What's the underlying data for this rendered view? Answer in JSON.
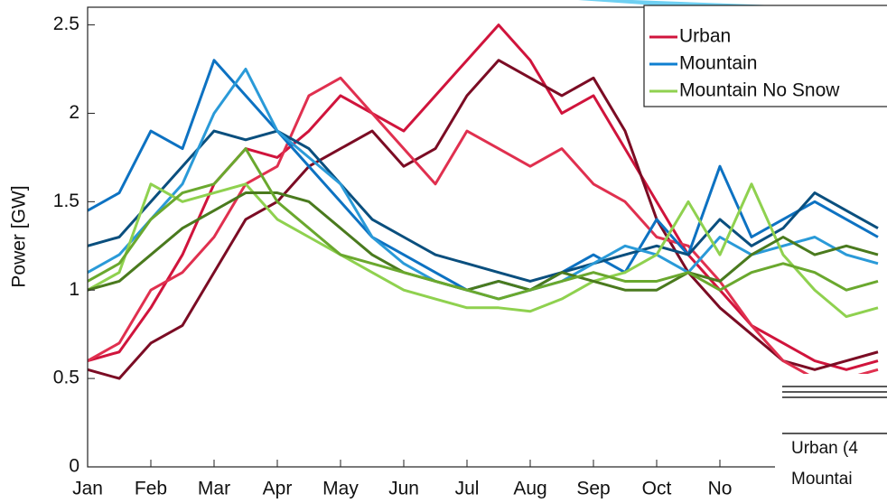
{
  "chart_data": {
    "type": "line",
    "ylabel": "Power [GW]",
    "x": [
      0,
      0.5,
      1,
      1.5,
      2,
      2.5,
      3,
      3.5,
      4,
      4.5,
      5,
      5.5,
      6,
      6.5,
      7,
      7.5,
      8,
      8.5,
      9,
      9.5,
      10,
      10.5,
      11,
      11.5,
      12,
      12.5
    ],
    "xlim": [
      0,
      12.65
    ],
    "xticks": [
      {
        "value": 0,
        "label": "Jan"
      },
      {
        "value": 1,
        "label": "Feb"
      },
      {
        "value": 2,
        "label": "Mar"
      },
      {
        "value": 3,
        "label": "Apr"
      },
      {
        "value": 4,
        "label": "May"
      },
      {
        "value": 5,
        "label": "Jun"
      },
      {
        "value": 6,
        "label": "Jul"
      },
      {
        "value": 7,
        "label": "Aug"
      },
      {
        "value": 8,
        "label": "Sep"
      },
      {
        "value": 9,
        "label": "Oct"
      },
      {
        "value": 10,
        "label": "No"
      }
    ],
    "ylim": [
      0,
      2.6
    ],
    "yticks": [
      0,
      0.5,
      1,
      1.5,
      2,
      2.5
    ],
    "legend": "upper right",
    "series": [
      {
        "name": "Urban",
        "color": "#d0143c",
        "runs": [
          {
            "color": "#d0143c",
            "values": [
              0.6,
              0.65,
              0.9,
              1.2,
              1.6,
              1.8,
              1.75,
              1.9,
              2.1,
              2.0,
              1.9,
              2.1,
              2.3,
              2.5,
              2.3,
              2.0,
              2.1,
              1.8,
              1.5,
              1.2,
              1.0,
              0.8,
              0.7,
              0.6,
              0.55,
              0.6
            ]
          },
          {
            "color": "#7b0c24",
            "values": [
              0.55,
              0.5,
              0.7,
              0.8,
              1.1,
              1.4,
              1.5,
              1.7,
              1.8,
              1.9,
              1.7,
              1.8,
              2.1,
              2.3,
              2.2,
              2.1,
              2.2,
              1.9,
              1.4,
              1.1,
              0.9,
              0.75,
              0.6,
              0.55,
              0.6,
              0.65
            ]
          },
          {
            "color": "#e0304f",
            "values": [
              0.6,
              0.7,
              1.0,
              1.1,
              1.3,
              1.6,
              1.7,
              2.1,
              2.2,
              2.0,
              1.8,
              1.6,
              1.9,
              1.8,
              1.7,
              1.8,
              1.6,
              1.5,
              1.3,
              1.25,
              1.05,
              0.8,
              0.6,
              0.5,
              0.5,
              0.55
            ]
          }
        ]
      },
      {
        "name": "Mountain",
        "color": "#0f7fd0",
        "runs": [
          {
            "color": "#0d72c2",
            "values": [
              1.45,
              1.55,
              1.9,
              1.8,
              2.3,
              2.1,
              1.9,
              1.7,
              1.5,
              1.3,
              1.2,
              1.1,
              1.0,
              1.05,
              1.0,
              1.1,
              1.2,
              1.1,
              1.4,
              1.2,
              1.7,
              1.3,
              1.4,
              1.5,
              1.4,
              1.3
            ]
          },
          {
            "color": "#0a4f7e",
            "values": [
              1.25,
              1.3,
              1.5,
              1.7,
              1.9,
              1.85,
              1.9,
              1.8,
              1.6,
              1.4,
              1.3,
              1.2,
              1.15,
              1.1,
              1.05,
              1.1,
              1.15,
              1.2,
              1.25,
              1.2,
              1.4,
              1.25,
              1.35,
              1.55,
              1.45,
              1.35
            ]
          },
          {
            "color": "#2a9ad8",
            "values": [
              1.1,
              1.2,
              1.4,
              1.6,
              2.0,
              2.25,
              1.9,
              1.75,
              1.6,
              1.3,
              1.15,
              1.05,
              1.0,
              0.95,
              1.0,
              1.05,
              1.15,
              1.25,
              1.2,
              1.1,
              1.3,
              1.2,
              1.25,
              1.3,
              1.2,
              1.15
            ]
          }
        ]
      },
      {
        "name": "Mountain No Snow",
        "color": "#8fd14f",
        "runs": [
          {
            "color": "#8fd14f",
            "values": [
              1.0,
              1.1,
              1.6,
              1.5,
              1.55,
              1.6,
              1.4,
              1.3,
              1.2,
              1.1,
              1.0,
              0.95,
              0.9,
              0.9,
              0.88,
              0.95,
              1.05,
              1.1,
              1.2,
              1.5,
              1.2,
              1.6,
              1.2,
              1.0,
              0.85,
              0.9
            ]
          },
          {
            "color": "#4a7a1e",
            "values": [
              1.0,
              1.05,
              1.2,
              1.35,
              1.45,
              1.55,
              1.55,
              1.5,
              1.35,
              1.2,
              1.1,
              1.05,
              1.0,
              1.05,
              1.0,
              1.1,
              1.05,
              1.0,
              1.0,
              1.1,
              1.05,
              1.2,
              1.3,
              1.2,
              1.25,
              1.2
            ]
          },
          {
            "color": "#6aa82e",
            "values": [
              1.05,
              1.15,
              1.4,
              1.55,
              1.6,
              1.8,
              1.5,
              1.35,
              1.2,
              1.15,
              1.1,
              1.05,
              1.0,
              0.95,
              1.0,
              1.05,
              1.1,
              1.05,
              1.05,
              1.1,
              1.0,
              1.1,
              1.15,
              1.1,
              1.0,
              1.05
            ]
          }
        ]
      }
    ]
  },
  "overlay": {
    "rows": [
      "Urban (4",
      "Mountai"
    ]
  }
}
